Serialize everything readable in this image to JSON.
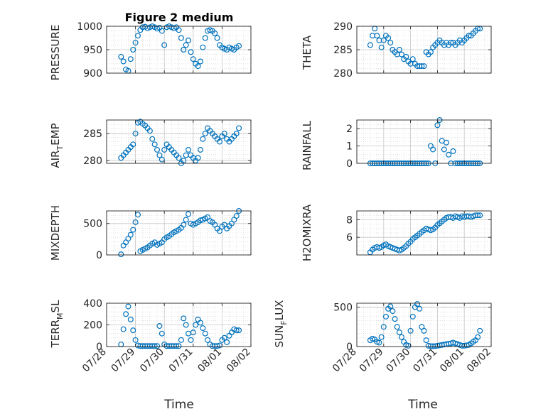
{
  "chart_data": [
    {
      "type": "scatter",
      "title": "Figure 2 medium",
      "ylabel": "PRESSURE",
      "ylim": [
        900,
        1000
      ],
      "yticks": [
        "900",
        "950",
        "1000"
      ],
      "xlim": [
        "07/28",
        "08/02"
      ],
      "grid": true,
      "marker_color": "#0072bd",
      "x": [
        "07/28 12:00",
        "07/28 14:00",
        "07/28 16:00",
        "07/28 18:00",
        "07/28 20:00",
        "07/28 22:00",
        "07/29 00:00",
        "07/29 02:00",
        "07/29 04:00",
        "07/29 06:00",
        "07/29 08:00",
        "07/29 10:00",
        "07/29 12:00",
        "07/29 14:00",
        "07/29 16:00",
        "07/29 18:00",
        "07/29 20:00",
        "07/29 22:00",
        "07/30 00:00",
        "07/30 02:00",
        "07/30 04:00",
        "07/30 06:00",
        "07/30 08:00",
        "07/30 10:00",
        "07/30 12:00",
        "07/30 14:00",
        "07/30 16:00",
        "07/30 18:00",
        "07/30 20:00",
        "07/30 22:00",
        "07/31 00:00",
        "07/31 02:00",
        "07/31 04:00",
        "07/31 06:00",
        "07/31 08:00",
        "07/31 10:00",
        "07/31 12:00",
        "07/31 14:00",
        "07/31 16:00",
        "07/31 18:00",
        "07/31 20:00",
        "07/31 22:00",
        "08/01 00:00",
        "08/01 02:00",
        "08/01 04:00",
        "08/01 06:00",
        "08/01 08:00",
        "08/01 10:00",
        "08/01 12:00",
        "08/01 14:00"
      ],
      "y": [
        935,
        925,
        908,
        905,
        930,
        950,
        965,
        980,
        992,
        998,
        999,
        996,
        998,
        1000,
        998,
        995,
        997,
        990,
        960,
        998,
        1000,
        998,
        996,
        998,
        992,
        975,
        950,
        960,
        970,
        945,
        930,
        920,
        915,
        925,
        955,
        975,
        990,
        992,
        990,
        985,
        975,
        960,
        955,
        952,
        950,
        955,
        952,
        950,
        955,
        958
      ]
    },
    {
      "type": "scatter",
      "ylabel": "THETA",
      "ylim": [
        280,
        290
      ],
      "yticks": [
        "280",
        "285",
        "290"
      ],
      "xlim": [
        "07/28",
        "08/02"
      ],
      "grid": true,
      "marker_color": "#0072bd",
      "x": [
        "07/28 12:00",
        "07/28 14:00",
        "07/28 16:00",
        "07/28 18:00",
        "07/28 20:00",
        "07/28 22:00",
        "07/29 00:00",
        "07/29 02:00",
        "07/29 04:00",
        "07/29 06:00",
        "07/29 08:00",
        "07/29 10:00",
        "07/29 12:00",
        "07/29 14:00",
        "07/29 16:00",
        "07/29 18:00",
        "07/29 20:00",
        "07/29 22:00",
        "07/30 00:00",
        "07/30 02:00",
        "07/30 04:00",
        "07/30 06:00",
        "07/30 08:00",
        "07/30 10:00",
        "07/30 12:00",
        "07/30 14:00",
        "07/30 16:00",
        "07/30 18:00",
        "07/30 20:00",
        "07/30 22:00",
        "07/31 00:00",
        "07/31 02:00",
        "07/31 04:00",
        "07/31 06:00",
        "07/31 08:00",
        "07/31 10:00",
        "07/31 12:00",
        "07/31 14:00",
        "07/31 16:00",
        "07/31 18:00",
        "07/31 20:00",
        "07/31 22:00",
        "08/01 00:00",
        "08/01 02:00",
        "08/01 04:00",
        "08/01 06:00",
        "08/01 08:00",
        "08/01 10:00",
        "08/01 12:00",
        "08/01 14:00"
      ],
      "y": [
        286,
        288,
        289.5,
        288,
        287,
        285.5,
        287,
        288,
        287.5,
        286.5,
        285,
        284.5,
        284,
        285,
        284,
        283,
        283.5,
        282.5,
        282,
        283,
        282,
        281.5,
        281.5,
        281.5,
        281.5,
        284.5,
        284,
        284.5,
        285.5,
        286,
        286.5,
        287,
        286.5,
        286,
        286.5,
        286,
        286.5,
        286.5,
        286,
        286.5,
        287,
        286.5,
        287,
        287.5,
        288,
        288,
        288.5,
        289,
        289.5,
        289.5
      ]
    },
    {
      "type": "scatter",
      "ylabel": "AIR_TEMP",
      "ylim": [
        279.5,
        287.5
      ],
      "yticks": [
        "280",
        "285"
      ],
      "xlim": [
        "07/28",
        "08/02"
      ],
      "grid": true,
      "marker_color": "#0072bd",
      "x": [
        "07/28 12:00",
        "07/28 14:00",
        "07/28 16:00",
        "07/28 18:00",
        "07/28 20:00",
        "07/28 22:00",
        "07/29 00:00",
        "07/29 02:00",
        "07/29 04:00",
        "07/29 06:00",
        "07/29 08:00",
        "07/29 10:00",
        "07/29 12:00",
        "07/29 14:00",
        "07/29 16:00",
        "07/29 18:00",
        "07/29 20:00",
        "07/29 22:00",
        "07/30 00:00",
        "07/30 02:00",
        "07/30 04:00",
        "07/30 06:00",
        "07/30 08:00",
        "07/30 10:00",
        "07/30 12:00",
        "07/30 14:00",
        "07/30 16:00",
        "07/30 18:00",
        "07/30 20:00",
        "07/30 22:00",
        "07/31 00:00",
        "07/31 02:00",
        "07/31 04:00",
        "07/31 06:00",
        "07/31 08:00",
        "07/31 10:00",
        "07/31 12:00",
        "07/31 14:00",
        "07/31 16:00",
        "07/31 18:00",
        "07/31 20:00",
        "07/31 22:00",
        "08/01 00:00",
        "08/01 02:00",
        "08/01 04:00",
        "08/01 06:00",
        "08/01 08:00",
        "08/01 10:00",
        "08/01 12:00",
        "08/01 14:00"
      ],
      "y": [
        280.5,
        281,
        281.5,
        282,
        282.5,
        283,
        285,
        287,
        287.2,
        286.8,
        286.5,
        286,
        285.5,
        284,
        283,
        282,
        281,
        280.2,
        282,
        283,
        282.5,
        282,
        281.5,
        281,
        280.5,
        279.5,
        280,
        281,
        282,
        281,
        280.5,
        280,
        280.5,
        282,
        284,
        285,
        286,
        285.5,
        285,
        284.5,
        284,
        283.5,
        284.5,
        285,
        284,
        283.5,
        284,
        284.5,
        285,
        286
      ]
    },
    {
      "type": "scatter",
      "ylabel": "RAINFALL",
      "ylim": [
        0,
        2.5
      ],
      "yticks": [
        "0",
        "1",
        "2"
      ],
      "xlim": [
        "07/28",
        "08/02"
      ],
      "grid": true,
      "marker_color": "#0072bd",
      "x": [
        "07/28 12:00",
        "07/28 14:00",
        "07/28 16:00",
        "07/28 18:00",
        "07/28 20:00",
        "07/28 22:00",
        "07/29 00:00",
        "07/29 02:00",
        "07/29 04:00",
        "07/29 06:00",
        "07/29 08:00",
        "07/29 10:00",
        "07/29 12:00",
        "07/29 14:00",
        "07/29 16:00",
        "07/29 18:00",
        "07/29 20:00",
        "07/29 22:00",
        "07/30 00:00",
        "07/30 02:00",
        "07/30 04:00",
        "07/30 06:00",
        "07/30 08:00",
        "07/30 10:00",
        "07/30 12:00",
        "07/30 14:00",
        "07/30 16:00",
        "07/30 18:00",
        "07/30 20:00",
        "07/30 22:00",
        "07/31 00:00",
        "07/31 02:00",
        "07/31 04:00",
        "07/31 06:00",
        "07/31 08:00",
        "07/31 10:00",
        "07/31 12:00",
        "07/31 14:00",
        "07/31 16:00",
        "07/31 18:00",
        "07/31 20:00",
        "07/31 22:00",
        "08/01 00:00",
        "08/01 02:00",
        "08/01 04:00",
        "08/01 06:00",
        "08/01 08:00",
        "08/01 10:00",
        "08/01 12:00",
        "08/01 14:00"
      ],
      "y": [
        0,
        0,
        0,
        0,
        0,
        0,
        0,
        0,
        0,
        0,
        0,
        0,
        0,
        0,
        0,
        0,
        0,
        0,
        0,
        0,
        0,
        0,
        0,
        0,
        0,
        0,
        0,
        1,
        0.8,
        0,
        2.2,
        2.5,
        1.3,
        0.8,
        1.2,
        0.5,
        0,
        0.7,
        0,
        0,
        0,
        0,
        0,
        0,
        0,
        0,
        0,
        0,
        0,
        0
      ]
    },
    {
      "type": "scatter",
      "ylabel": "MIXDEPTH",
      "ylim": [
        0,
        700
      ],
      "yticks": [
        "0",
        "500"
      ],
      "xlim": [
        "07/28",
        "08/02"
      ],
      "grid": true,
      "marker_color": "#0072bd",
      "x": [
        "07/28 12:00",
        "07/28 14:00",
        "07/28 16:00",
        "07/28 18:00",
        "07/28 20:00",
        "07/28 22:00",
        "07/29 00:00",
        "07/29 02:00",
        "07/29 04:00",
        "07/29 06:00",
        "07/29 08:00",
        "07/29 10:00",
        "07/29 12:00",
        "07/29 14:00",
        "07/29 16:00",
        "07/29 18:00",
        "07/29 20:00",
        "07/29 22:00",
        "07/30 00:00",
        "07/30 02:00",
        "07/30 04:00",
        "07/30 06:00",
        "07/30 08:00",
        "07/30 10:00",
        "07/30 12:00",
        "07/30 14:00",
        "07/30 16:00",
        "07/30 18:00",
        "07/30 20:00",
        "07/30 22:00",
        "07/31 00:00",
        "07/31 02:00",
        "07/31 04:00",
        "07/31 06:00",
        "07/31 08:00",
        "07/31 10:00",
        "07/31 12:00",
        "07/31 14:00",
        "07/31 16:00",
        "07/31 18:00",
        "07/31 20:00",
        "07/31 22:00",
        "08/01 00:00",
        "08/01 02:00",
        "08/01 04:00",
        "08/01 06:00",
        "08/01 08:00",
        "08/01 10:00",
        "08/01 12:00",
        "08/01 14:00"
      ],
      "y": [
        10,
        150,
        200,
        260,
        320,
        400,
        520,
        640,
        60,
        80,
        100,
        120,
        150,
        180,
        200,
        160,
        180,
        200,
        250,
        280,
        300,
        330,
        360,
        380,
        400,
        430,
        480,
        560,
        650,
        500,
        480,
        500,
        520,
        550,
        560,
        580,
        600,
        540,
        520,
        480,
        420,
        380,
        450,
        480,
        420,
        460,
        500,
        560,
        620,
        700
      ]
    },
    {
      "type": "scatter",
      "ylabel": "H2OMIXRA",
      "ylim": [
        4,
        9
      ],
      "yticks": [
        "6",
        "8"
      ],
      "xlim": [
        "07/28",
        "08/02"
      ],
      "grid": true,
      "marker_color": "#0072bd",
      "x": [
        "07/28 12:00",
        "07/28 14:00",
        "07/28 16:00",
        "07/28 18:00",
        "07/28 20:00",
        "07/28 22:00",
        "07/29 00:00",
        "07/29 02:00",
        "07/29 04:00",
        "07/29 06:00",
        "07/29 08:00",
        "07/29 10:00",
        "07/29 12:00",
        "07/29 14:00",
        "07/29 16:00",
        "07/29 18:00",
        "07/29 20:00",
        "07/29 22:00",
        "07/30 00:00",
        "07/30 02:00",
        "07/30 04:00",
        "07/30 06:00",
        "07/30 08:00",
        "07/30 10:00",
        "07/30 12:00",
        "07/30 14:00",
        "07/30 16:00",
        "07/30 18:00",
        "07/30 20:00",
        "07/30 22:00",
        "07/31 00:00",
        "07/31 02:00",
        "07/31 04:00",
        "07/31 06:00",
        "07/31 08:00",
        "07/31 10:00",
        "07/31 12:00",
        "07/31 14:00",
        "07/31 16:00",
        "07/31 18:00",
        "07/31 20:00",
        "07/31 22:00",
        "08/01 00:00",
        "08/01 02:00",
        "08/01 04:00",
        "08/01 06:00",
        "08/01 08:00",
        "08/01 10:00",
        "08/01 12:00",
        "08/01 14:00"
      ],
      "y": [
        4.3,
        4.6,
        4.8,
        4.9,
        4.8,
        4.9,
        5.1,
        5.2,
        5.0,
        4.9,
        4.8,
        4.7,
        4.6,
        4.5,
        4.6,
        4.8,
        5.0,
        5.3,
        5.5,
        5.8,
        6.0,
        6.2,
        6.4,
        6.6,
        6.8,
        7.0,
        6.9,
        6.8,
        6.9,
        7.1,
        7.4,
        7.6,
        7.8,
        8.0,
        8.2,
        8.3,
        8.3,
        8.2,
        8.4,
        8.3,
        8.2,
        8.4,
        8.3,
        8.4,
        8.4,
        8.3,
        8.4,
        8.5,
        8.5,
        8.5
      ]
    },
    {
      "type": "scatter",
      "ylabel": "TERR_MSL",
      "ylim": [
        0,
        400
      ],
      "yticks": [
        "0",
        "200",
        "400"
      ],
      "xlim": [
        "07/28",
        "08/02"
      ],
      "grid": true,
      "marker_color": "#0072bd",
      "x": [
        "07/28 12:00",
        "07/28 14:00",
        "07/28 16:00",
        "07/28 18:00",
        "07/28 20:00",
        "07/28 22:00",
        "07/29 00:00",
        "07/29 02:00",
        "07/29 04:00",
        "07/29 06:00",
        "07/29 08:00",
        "07/29 10:00",
        "07/29 12:00",
        "07/29 14:00",
        "07/29 16:00",
        "07/29 18:00",
        "07/29 20:00",
        "07/29 22:00",
        "07/30 00:00",
        "07/30 02:00",
        "07/30 04:00",
        "07/30 06:00",
        "07/30 08:00",
        "07/30 10:00",
        "07/30 12:00",
        "07/30 14:00",
        "07/30 16:00",
        "07/30 18:00",
        "07/30 20:00",
        "07/30 22:00",
        "07/31 00:00",
        "07/31 02:00",
        "07/31 04:00",
        "07/31 06:00",
        "07/31 08:00",
        "07/31 10:00",
        "07/31 12:00",
        "07/31 14:00",
        "07/31 16:00",
        "07/31 18:00",
        "07/31 20:00",
        "07/31 22:00",
        "08/01 00:00",
        "08/01 02:00",
        "08/01 04:00",
        "08/01 06:00",
        "08/01 08:00",
        "08/01 10:00",
        "08/01 12:00",
        "08/01 14:00"
      ],
      "y": [
        20,
        160,
        300,
        370,
        250,
        150,
        60,
        10,
        5,
        5,
        5,
        5,
        5,
        5,
        5,
        5,
        190,
        120,
        20,
        5,
        5,
        5,
        5,
        5,
        5,
        60,
        260,
        200,
        120,
        60,
        130,
        200,
        250,
        220,
        170,
        120,
        60,
        20,
        5,
        5,
        5,
        10,
        60,
        80,
        40,
        100,
        130,
        160,
        150,
        150
      ]
    },
    {
      "type": "scatter",
      "ylabel": "SUN_FLUX",
      "ylim": [
        0,
        550
      ],
      "yticks": [
        "0",
        "500"
      ],
      "xlim": [
        "07/28",
        "08/02"
      ],
      "grid": true,
      "marker_color": "#0072bd",
      "x": [
        "07/28 12:00",
        "07/28 14:00",
        "07/28 16:00",
        "07/28 18:00",
        "07/28 20:00",
        "07/28 22:00",
        "07/29 00:00",
        "07/29 02:00",
        "07/29 04:00",
        "07/29 06:00",
        "07/29 08:00",
        "07/29 10:00",
        "07/29 12:00",
        "07/29 14:00",
        "07/29 16:00",
        "07/29 18:00",
        "07/29 20:00",
        "07/29 22:00",
        "07/30 00:00",
        "07/30 02:00",
        "07/30 04:00",
        "07/30 06:00",
        "07/30 08:00",
        "07/30 10:00",
        "07/30 12:00",
        "07/30 14:00",
        "07/30 16:00",
        "07/30 18:00",
        "07/30 20:00",
        "07/30 22:00",
        "07/31 00:00",
        "07/31 02:00",
        "07/31 04:00",
        "07/31 06:00",
        "07/31 08:00",
        "07/31 10:00",
        "07/31 12:00",
        "07/31 14:00",
        "07/31 16:00",
        "07/31 18:00",
        "07/31 20:00",
        "07/31 22:00",
        "08/01 00:00",
        "08/01 02:00",
        "08/01 04:00",
        "08/01 06:00",
        "08/01 08:00",
        "08/01 10:00",
        "08/01 12:00",
        "08/01 14:00"
      ],
      "y": [
        80,
        100,
        90,
        60,
        50,
        120,
        250,
        380,
        480,
        510,
        450,
        350,
        250,
        180,
        120,
        60,
        20,
        10,
        200,
        380,
        500,
        540,
        480,
        250,
        200,
        80,
        10,
        5,
        5,
        5,
        10,
        15,
        20,
        25,
        30,
        35,
        40,
        50,
        40,
        30,
        20,
        10,
        10,
        15,
        20,
        40,
        60,
        80,
        120,
        200
      ]
    }
  ],
  "axes_labels": {
    "left_xlabel": "Time",
    "right_xlabel": "Time",
    "xticks": [
      "07/28",
      "07/29",
      "07/30",
      "07/31",
      "08/01",
      "08/02"
    ]
  }
}
